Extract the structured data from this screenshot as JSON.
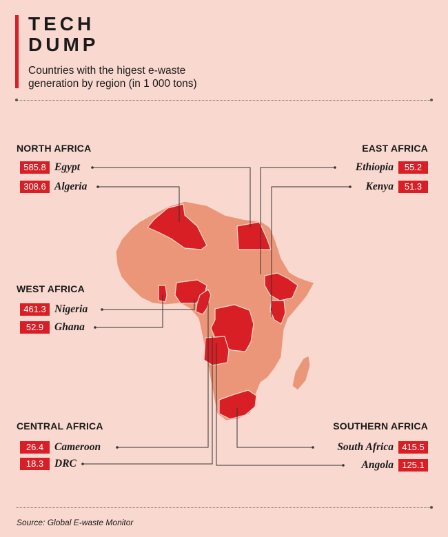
{
  "title": {
    "line1": "TECH",
    "line2": "DUMP"
  },
  "subtitle": {
    "line1": "Countries with the higest e-waste",
    "line2": "generation by region (in 1 000 tons)"
  },
  "source": "Source: Global E-waste Monitor",
  "colors": {
    "background": "#f9d8cf",
    "highlight": "#d81f26",
    "other_country": "#eb9679",
    "border": "#f9d8cf"
  },
  "chart_data": {
    "type": "map",
    "unit": "1 000 tons",
    "regions": [
      {
        "name": "NORTH AFRICA",
        "countries": [
          {
            "country": "Egypt",
            "value": 585.8
          },
          {
            "country": "Algeria",
            "value": 308.6
          }
        ]
      },
      {
        "name": "EAST AFRICA",
        "countries": [
          {
            "country": "Ethiopia",
            "value": 55.2
          },
          {
            "country": "Kenya",
            "value": 51.3
          }
        ]
      },
      {
        "name": "WEST AFRICA",
        "countries": [
          {
            "country": "Nigeria",
            "value": 461.3
          },
          {
            "country": "Ghana",
            "value": 52.9
          }
        ]
      },
      {
        "name": "CENTRAL AFRICA",
        "countries": [
          {
            "country": "Cameroon",
            "value": 26.4
          },
          {
            "country": "DRC",
            "value": 18.3
          }
        ]
      },
      {
        "name": "SOUTHERN AFRICA",
        "countries": [
          {
            "country": "South Africa",
            "value": 415.5
          },
          {
            "country": "Angola",
            "value": 125.1
          }
        ]
      }
    ]
  },
  "labels": {
    "egypt_value": "585.8",
    "algeria_value": "308.6",
    "ethiopia_value": "55.2",
    "kenya_value": "51.3",
    "nigeria_value": "461.3",
    "ghana_value": "52.9",
    "cameroon_value": "26.4",
    "drc_value": "18.3",
    "south_africa_value": "415.5",
    "angola_value": "125.1"
  }
}
